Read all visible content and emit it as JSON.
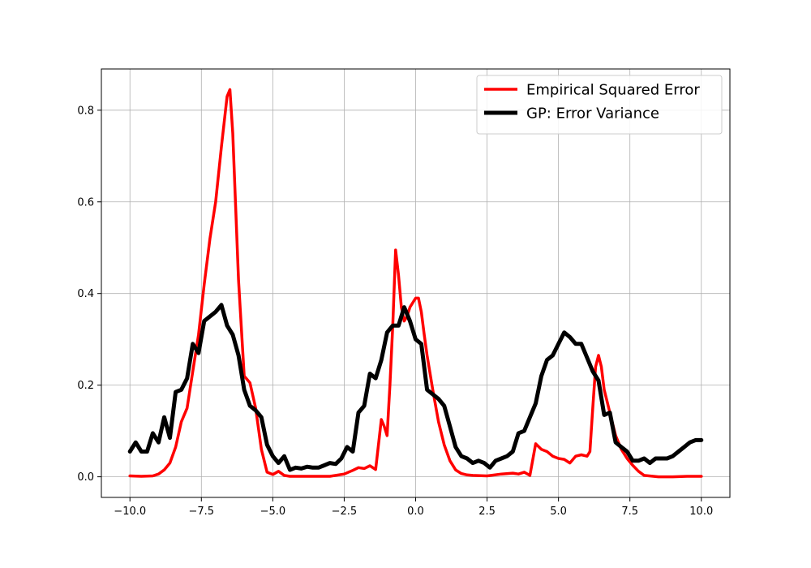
{
  "chart_data": {
    "type": "line",
    "title": "",
    "xlabel": "",
    "ylabel": "",
    "xlim": [
      -11.0,
      11.0
    ],
    "ylim": [
      -0.045,
      0.89
    ],
    "grid": true,
    "legend_placement": "upper-right",
    "xticks": [
      -10.0,
      -7.5,
      -5.0,
      -2.5,
      0.0,
      2.5,
      5.0,
      7.5,
      10.0
    ],
    "xtick_labels": [
      "−10.0",
      "−7.5",
      "−5.0",
      "−2.5",
      "0.0",
      "2.5",
      "5.0",
      "7.5",
      "10.0"
    ],
    "yticks": [
      0.0,
      0.2,
      0.4,
      0.6,
      0.8
    ],
    "ytick_labels": [
      "0.0",
      "0.2",
      "0.4",
      "0.6",
      "0.8"
    ],
    "series": [
      {
        "name": "Empirical Squared Error",
        "color": "#ff0000",
        "x": [
          -10.0,
          -9.6,
          -9.2,
          -9.0,
          -8.8,
          -8.6,
          -8.4,
          -8.2,
          -8.0,
          -7.8,
          -7.6,
          -7.4,
          -7.2,
          -7.0,
          -6.8,
          -6.6,
          -6.5,
          -6.4,
          -6.2,
          -6.0,
          -5.8,
          -5.6,
          -5.4,
          -5.2,
          -5.0,
          -4.8,
          -4.6,
          -4.4,
          -4.2,
          -4.0,
          -3.5,
          -3.0,
          -2.5,
          -2.2,
          -2.0,
          -1.8,
          -1.6,
          -1.4,
          -1.2,
          -1.1,
          -1.0,
          -0.9,
          -0.8,
          -0.7,
          -0.6,
          -0.5,
          -0.4,
          -0.3,
          -0.2,
          -0.1,
          0.0,
          0.1,
          0.2,
          0.3,
          0.4,
          0.6,
          0.8,
          1.0,
          1.2,
          1.4,
          1.6,
          1.8,
          2.0,
          2.5,
          3.0,
          3.4,
          3.6,
          3.8,
          4.0,
          4.2,
          4.4,
          4.6,
          4.8,
          5.0,
          5.2,
          5.4,
          5.6,
          5.8,
          6.0,
          6.1,
          6.2,
          6.3,
          6.4,
          6.5,
          6.6,
          6.8,
          7.0,
          7.2,
          7.4,
          7.6,
          7.8,
          8.0,
          8.5,
          9.0,
          9.5,
          10.0
        ],
        "y": [
          0.002,
          0.001,
          0.002,
          0.006,
          0.015,
          0.03,
          0.065,
          0.12,
          0.15,
          0.23,
          0.31,
          0.42,
          0.52,
          0.6,
          0.72,
          0.83,
          0.845,
          0.75,
          0.43,
          0.22,
          0.205,
          0.15,
          0.06,
          0.01,
          0.005,
          0.012,
          0.003,
          0.001,
          0.001,
          0.001,
          0.001,
          0.001,
          0.006,
          0.014,
          0.02,
          0.018,
          0.024,
          0.016,
          0.125,
          0.11,
          0.09,
          0.2,
          0.33,
          0.495,
          0.44,
          0.37,
          0.34,
          0.35,
          0.37,
          0.38,
          0.39,
          0.39,
          0.36,
          0.31,
          0.265,
          0.19,
          0.12,
          0.07,
          0.035,
          0.015,
          0.007,
          0.004,
          0.003,
          0.002,
          0.006,
          0.008,
          0.006,
          0.01,
          0.003,
          0.072,
          0.06,
          0.055,
          0.045,
          0.04,
          0.038,
          0.03,
          0.045,
          0.048,
          0.045,
          0.055,
          0.15,
          0.24,
          0.265,
          0.24,
          0.19,
          0.14,
          0.09,
          0.06,
          0.04,
          0.025,
          0.012,
          0.003,
          0.0,
          0.0,
          0.001,
          0.001
        ]
      },
      {
        "name": "GP: Error Variance",
        "color": "#000000",
        "x": [
          -10.0,
          -9.8,
          -9.6,
          -9.4,
          -9.2,
          -9.0,
          -8.8,
          -8.6,
          -8.4,
          -8.2,
          -8.0,
          -7.8,
          -7.6,
          -7.4,
          -7.2,
          -7.0,
          -6.8,
          -6.6,
          -6.4,
          -6.2,
          -6.0,
          -5.8,
          -5.6,
          -5.4,
          -5.2,
          -5.0,
          -4.8,
          -4.6,
          -4.4,
          -4.2,
          -4.0,
          -3.8,
          -3.6,
          -3.4,
          -3.2,
          -3.0,
          -2.8,
          -2.6,
          -2.4,
          -2.2,
          -2.0,
          -1.8,
          -1.6,
          -1.4,
          -1.2,
          -1.0,
          -0.8,
          -0.6,
          -0.4,
          -0.2,
          0.0,
          0.2,
          0.4,
          0.6,
          0.8,
          1.0,
          1.2,
          1.4,
          1.6,
          1.8,
          2.0,
          2.2,
          2.4,
          2.6,
          2.8,
          3.0,
          3.2,
          3.4,
          3.6,
          3.8,
          4.0,
          4.2,
          4.4,
          4.6,
          4.8,
          5.0,
          5.2,
          5.4,
          5.6,
          5.8,
          6.0,
          6.2,
          6.4,
          6.6,
          6.8,
          7.0,
          7.2,
          7.4,
          7.6,
          7.8,
          8.0,
          8.2,
          8.4,
          8.6,
          8.8,
          9.0,
          9.2,
          9.4,
          9.6,
          9.8,
          10.0
        ],
        "y": [
          0.055,
          0.075,
          0.055,
          0.055,
          0.095,
          0.075,
          0.13,
          0.085,
          0.185,
          0.19,
          0.215,
          0.29,
          0.27,
          0.34,
          0.35,
          0.36,
          0.375,
          0.33,
          0.31,
          0.265,
          0.19,
          0.155,
          0.145,
          0.13,
          0.07,
          0.045,
          0.03,
          0.045,
          0.015,
          0.02,
          0.018,
          0.022,
          0.02,
          0.02,
          0.025,
          0.03,
          0.028,
          0.04,
          0.065,
          0.055,
          0.14,
          0.155,
          0.225,
          0.215,
          0.255,
          0.315,
          0.33,
          0.33,
          0.37,
          0.34,
          0.3,
          0.29,
          0.19,
          0.18,
          0.17,
          0.155,
          0.11,
          0.065,
          0.045,
          0.04,
          0.03,
          0.035,
          0.03,
          0.02,
          0.035,
          0.04,
          0.045,
          0.055,
          0.095,
          0.1,
          0.13,
          0.16,
          0.22,
          0.255,
          0.265,
          0.29,
          0.315,
          0.305,
          0.29,
          0.29,
          0.26,
          0.23,
          0.21,
          0.135,
          0.14,
          0.075,
          0.065,
          0.055,
          0.035,
          0.035,
          0.04,
          0.03,
          0.04,
          0.04,
          0.04,
          0.045,
          0.055,
          0.065,
          0.075,
          0.08,
          0.08
        ]
      }
    ]
  }
}
